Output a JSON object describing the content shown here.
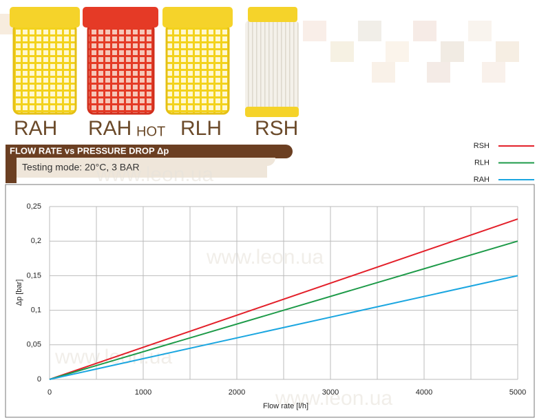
{
  "products": [
    "RAH",
    "RAH",
    "RLH",
    "RSH"
  ],
  "product_note": "HOT",
  "banner": "FLOW RATE vs PRESSURE DROP Δp",
  "testing_mode": "Testing mode: 20°C, 3 BAR",
  "watermark": "www.leon.ua",
  "chart_data": {
    "type": "line",
    "xlabel": "Flow rate [l/h]",
    "ylabel": "Δp [bar]",
    "x": [
      0,
      5000
    ],
    "series": [
      {
        "name": "RSH",
        "color": "#e3202a",
        "values": [
          0,
          0.232
        ]
      },
      {
        "name": "RLH",
        "color": "#1d9a48",
        "values": [
          0,
          0.2
        ]
      },
      {
        "name": "RAH",
        "color": "#1aa6e0",
        "values": [
          0,
          0.15
        ]
      }
    ],
    "xlim": [
      0,
      5000
    ],
    "ylim": [
      0,
      0.25
    ],
    "xticks": [
      0,
      1000,
      2000,
      3000,
      4000,
      5000
    ],
    "xgrid": [
      0,
      500,
      1000,
      1500,
      2000,
      2500,
      3000,
      3500,
      4000,
      4500,
      5000
    ],
    "yticks": [
      0,
      {
        "value": 0.05,
        "label": "0,05"
      },
      {
        "value": 0.1,
        "label": "0,1"
      },
      {
        "value": 0.15,
        "label": "0,15"
      },
      {
        "value": 0.2,
        "label": "0,2"
      },
      {
        "value": 0.25,
        "label": "0,25"
      }
    ],
    "grid": true,
    "legend": "top-right"
  }
}
